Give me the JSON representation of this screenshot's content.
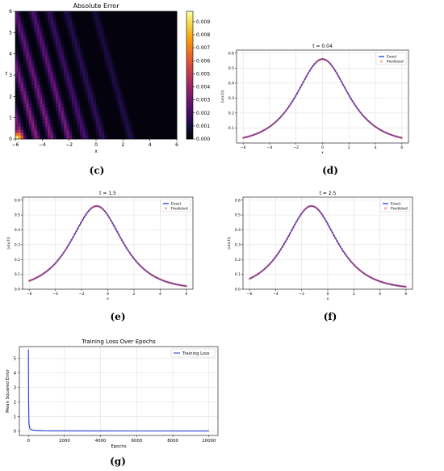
{
  "captions": [
    "(c)",
    "(d)",
    "(e)",
    "(f)",
    "(g)"
  ],
  "chart_data": [
    {
      "id": "c",
      "type": "heatmap",
      "title": "Absolute Error",
      "xlabel": "x",
      "ylabel": "t",
      "xlim": [
        -6,
        6
      ],
      "ylim": [
        0,
        6
      ],
      "xticks": [
        "-6",
        "-4",
        "-2",
        "0",
        "2",
        "4",
        "6"
      ],
      "yticks": [
        "0",
        "1",
        "2",
        "3",
        "4",
        "5",
        "6"
      ],
      "colorbar": {
        "min": 0,
        "max": 0.0098,
        "ticks": [
          "0.000",
          "0.001",
          "0.002",
          "0.003",
          "0.004",
          "0.005",
          "0.006",
          "0.007",
          "0.008",
          "0.009"
        ],
        "colors": [
          "#000004",
          "#1b0c41",
          "#4a0c6b",
          "#781c6d",
          "#a52c60",
          "#cf4446",
          "#ed6925",
          "#fb9b06",
          "#f7d13d",
          "#fcffa4"
        ]
      },
      "bands": [
        {
          "x0": -5.5,
          "amplitude": 0.0032
        },
        {
          "x0": -4.4,
          "amplitude": 0.0036
        },
        {
          "x0": -3.3,
          "amplitude": 0.0034
        },
        {
          "x0": -2.0,
          "amplitude": 0.0032
        },
        {
          "x0": -0.8,
          "amplitude": 0.0022
        },
        {
          "x0": 0.5,
          "amplitude": 0.0016
        },
        {
          "x0": 2.6,
          "amplitude": 0.0012
        }
      ],
      "hotspot": {
        "x": -6,
        "t": 0,
        "value": 0.0098
      }
    },
    {
      "id": "d",
      "type": "line",
      "title": "t = 0.04",
      "xlabel": "x",
      "ylabel": "|u(x,t)|",
      "xlim": [
        -6.5,
        6.5
      ],
      "ylim": [
        0,
        0.62
      ],
      "xticks": [
        -6,
        -4,
        -2,
        0,
        2,
        4,
        6
      ],
      "yticks": [
        0.1,
        0.2,
        0.3,
        0.4,
        0.5,
        0.6
      ],
      "grid": true,
      "legend": "top-right",
      "series": [
        {
          "name": "Exact",
          "style": "line",
          "color": "#1f3fd6",
          "peak": 0.56,
          "center": 0.0,
          "width": 1.72
        },
        {
          "name": "Predicted",
          "style": "markers",
          "color": "#e0303a",
          "peak": 0.56,
          "center": 0.0,
          "width": 1.72
        }
      ]
    },
    {
      "id": "e",
      "type": "line",
      "title": "t = 1.5",
      "xlabel": "x",
      "ylabel": "|u(x,t)|",
      "xlim": [
        -6.5,
        6.5
      ],
      "ylim": [
        0,
        0.62
      ],
      "xticks": [
        -6,
        -4,
        -2,
        0,
        2,
        4,
        6
      ],
      "yticks": [
        0.0,
        0.1,
        0.2,
        0.3,
        0.4,
        0.5,
        0.6
      ],
      "grid": true,
      "legend": "top-right",
      "series": [
        {
          "name": "Exact",
          "style": "line",
          "color": "#1f3fd6",
          "peak": 0.56,
          "center": -0.85,
          "width": 1.72
        },
        {
          "name": "Predicted",
          "style": "markers",
          "color": "#e0303a",
          "peak": 0.56,
          "center": -0.85,
          "width": 1.72
        }
      ]
    },
    {
      "id": "f",
      "type": "line",
      "title": "t = 2.5",
      "xlabel": "x",
      "ylabel": "|u(x,t)|",
      "xlim": [
        -6.5,
        6.5
      ],
      "ylim": [
        0,
        0.62
      ],
      "xticks": [
        -6,
        -4,
        -2,
        0,
        2,
        4,
        6
      ],
      "yticks": [
        0.0,
        0.1,
        0.2,
        0.3,
        0.4,
        0.5,
        0.6
      ],
      "grid": true,
      "legend": "top-right",
      "series": [
        {
          "name": "Exact",
          "style": "line",
          "color": "#1f3fd6",
          "peak": 0.56,
          "center": -1.25,
          "width": 1.72
        },
        {
          "name": "Predicted",
          "style": "markers",
          "color": "#e0303a",
          "peak": 0.56,
          "center": -1.25,
          "width": 1.72
        }
      ]
    },
    {
      "id": "g",
      "type": "line",
      "title": "Training Loss Over Epochs",
      "xlabel": "Epochs",
      "ylabel": "Mean Squared Error",
      "xlim": [
        -500,
        10500
      ],
      "ylim": [
        -0.3,
        5.8
      ],
      "xticks": [
        0,
        2000,
        4000,
        6000,
        8000,
        10000
      ],
      "yticks": [
        0,
        1,
        2,
        3,
        4,
        5
      ],
      "grid": true,
      "legend": "top-right",
      "series": [
        {
          "name": "Training Loss",
          "color": "#1f3fd6",
          "x": [
            0,
            10,
            30,
            60,
            100,
            200,
            400,
            800,
            1500,
            3000,
            6000,
            10000
          ],
          "y": [
            5.6,
            2.2,
            0.6,
            0.25,
            0.14,
            0.08,
            0.05,
            0.03,
            0.02,
            0.015,
            0.012,
            0.01
          ]
        }
      ]
    }
  ]
}
